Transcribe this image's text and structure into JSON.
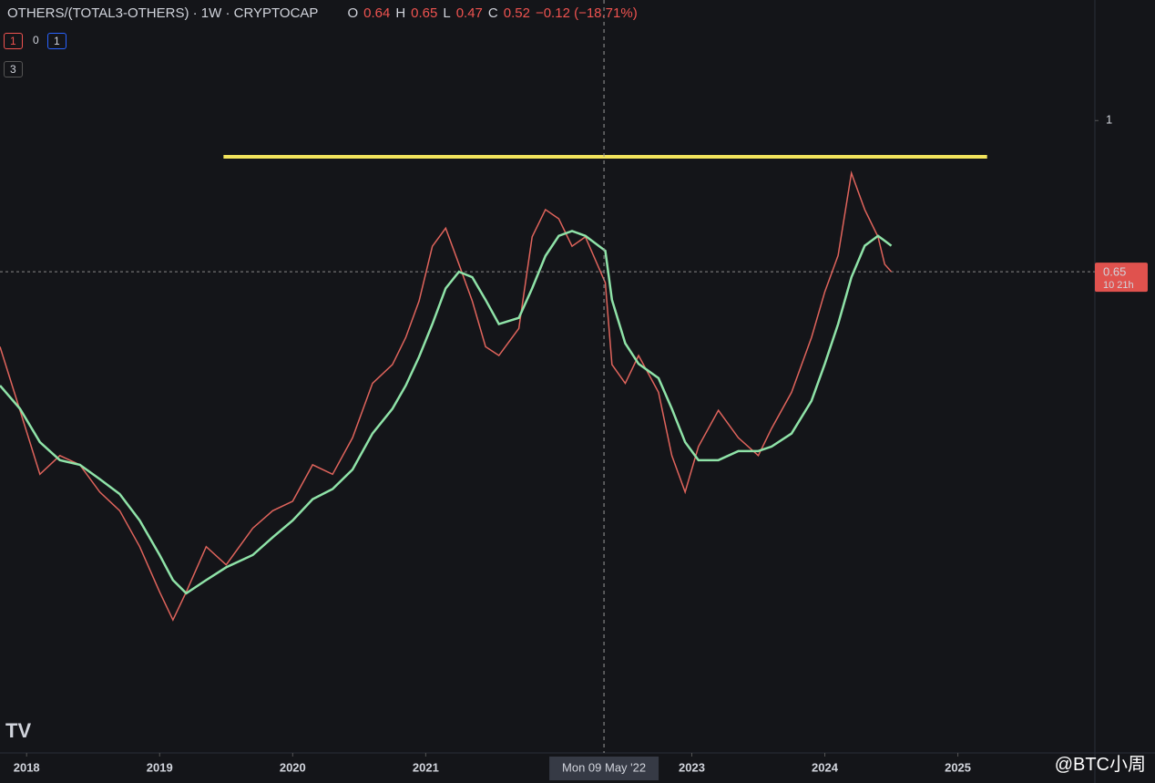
{
  "header": {
    "symbol": "OTHERS/(TOTAL3-OTHERS) · 1W · CRYPTOCAP",
    "open_label": "O",
    "open": 0.64,
    "high_label": "H",
    "high": 0.65,
    "low_label": "L",
    "low": 0.47,
    "close_label": "C",
    "close": 0.52,
    "change": "−0.12 (−18.71%)"
  },
  "badges": [
    "1",
    "0",
    "1",
    "3"
  ],
  "watermark": "@BTC小周",
  "chart_data": {
    "type": "line",
    "x": [
      2017.8,
      2017.95,
      2018.1,
      2018.25,
      2018.4,
      2018.55,
      2018.7,
      2018.85,
      2019.0,
      2019.1,
      2019.2,
      2019.35,
      2019.5,
      2019.7,
      2019.85,
      2020.0,
      2020.15,
      2020.3,
      2020.45,
      2020.6,
      2020.75,
      2020.85,
      2020.95,
      2021.05,
      2021.15,
      2021.25,
      2021.35,
      2021.45,
      2021.55,
      2021.7,
      2021.8,
      2021.9,
      2022.0,
      2022.1,
      2022.2,
      2022.35,
      2022.4,
      2022.5,
      2022.6,
      2022.75,
      2022.85,
      2022.95,
      2023.05,
      2023.2,
      2023.35,
      2023.5,
      2023.6,
      2023.75,
      2023.9,
      2024.0,
      2024.1,
      2024.2,
      2024.3,
      2024.4,
      2024.45,
      2024.5
    ],
    "series": [
      {
        "color": "#e0645c",
        "values": [
          0.525,
          0.438,
          0.365,
          0.385,
          0.375,
          0.347,
          0.329,
          0.297,
          0.261,
          0.241,
          0.261,
          0.297,
          0.282,
          0.313,
          0.329,
          0.338,
          0.375,
          0.365,
          0.405,
          0.473,
          0.499,
          0.539,
          0.598,
          0.699,
          0.736,
          0.664,
          0.598,
          0.525,
          0.512,
          0.553,
          0.718,
          0.776,
          0.756,
          0.699,
          0.718,
          0.63,
          0.499,
          0.473,
          0.512,
          0.461,
          0.385,
          0.347,
          0.395,
          0.438,
          0.405,
          0.385,
          0.416,
          0.461,
          0.539,
          0.614,
          0.681,
          0.861,
          0.776,
          0.718,
          0.664,
          0.65
        ]
      },
      {
        "color": "#8fe3a8",
        "values": [
          0.47,
          0.44,
          0.4,
          0.38,
          0.375,
          0.36,
          0.345,
          0.32,
          0.29,
          0.27,
          0.26,
          0.27,
          0.28,
          0.29,
          0.305,
          0.32,
          0.34,
          0.35,
          0.37,
          0.41,
          0.44,
          0.47,
          0.51,
          0.56,
          0.62,
          0.65,
          0.64,
          0.6,
          0.56,
          0.57,
          0.62,
          0.68,
          0.72,
          0.73,
          0.72,
          0.69,
          0.6,
          0.53,
          0.5,
          0.48,
          0.44,
          0.4,
          0.38,
          0.38,
          0.39,
          0.39,
          0.395,
          0.41,
          0.45,
          0.5,
          0.56,
          0.64,
          0.7,
          0.72,
          0.71,
          0.7
        ]
      }
    ],
    "log_scale": true,
    "xlim": [
      2017.8,
      2026.03
    ],
    "xticks": [
      2018,
      2019,
      2020,
      2021,
      2023,
      2024,
      2025
    ],
    "ylim": [
      0.165,
      1.41
    ],
    "yticks": [
      1
    ],
    "resistance": {
      "x": [
        2019.48,
        2025.22
      ],
      "y": 0.902,
      "color": "#f2e35c"
    },
    "price_line": 0.65,
    "countdown": "10 21h",
    "crosshair": {
      "x": 2022.34,
      "label": "Mon 09 May '22"
    }
  }
}
